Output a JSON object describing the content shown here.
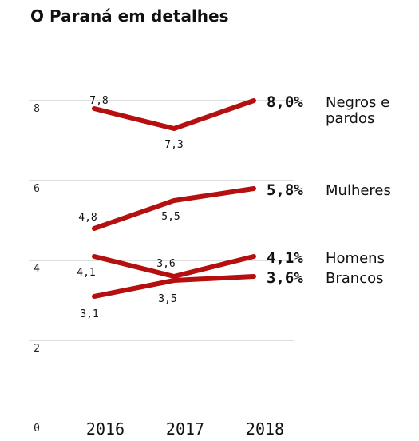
{
  "title": "O Paraná em detalhes",
  "chart_data": {
    "type": "line",
    "title": "O Paraná em detalhes",
    "x": [
      "2016",
      "2017",
      "2018"
    ],
    "ylim": [
      0,
      8
    ],
    "yticks": [
      "0",
      "2",
      "4",
      "6",
      "8"
    ],
    "grid": true,
    "line_color": "#b50f0f",
    "series": [
      {
        "name": "Negros e pardos",
        "name_lines": [
          "Negros e",
          "pardos"
        ],
        "values": [
          7.8,
          7.3,
          8.0
        ],
        "labels": [
          "7,8",
          "7,3",
          "8,0%"
        ]
      },
      {
        "name": "Mulheres",
        "name_lines": [
          "Mulheres"
        ],
        "values": [
          4.8,
          5.5,
          5.8
        ],
        "labels": [
          "4,8",
          "5,5",
          "5,8%"
        ]
      },
      {
        "name": "Homens",
        "name_lines": [
          "Homens"
        ],
        "values": [
          4.1,
          3.6,
          4.1
        ],
        "labels": [
          "4,1",
          "3,6",
          "4,1%"
        ]
      },
      {
        "name": "Brancos",
        "name_lines": [
          "Brancos"
        ],
        "values": [
          3.1,
          3.5,
          3.6
        ],
        "labels": [
          "3,1",
          "3,5",
          "3,6%"
        ]
      }
    ]
  }
}
